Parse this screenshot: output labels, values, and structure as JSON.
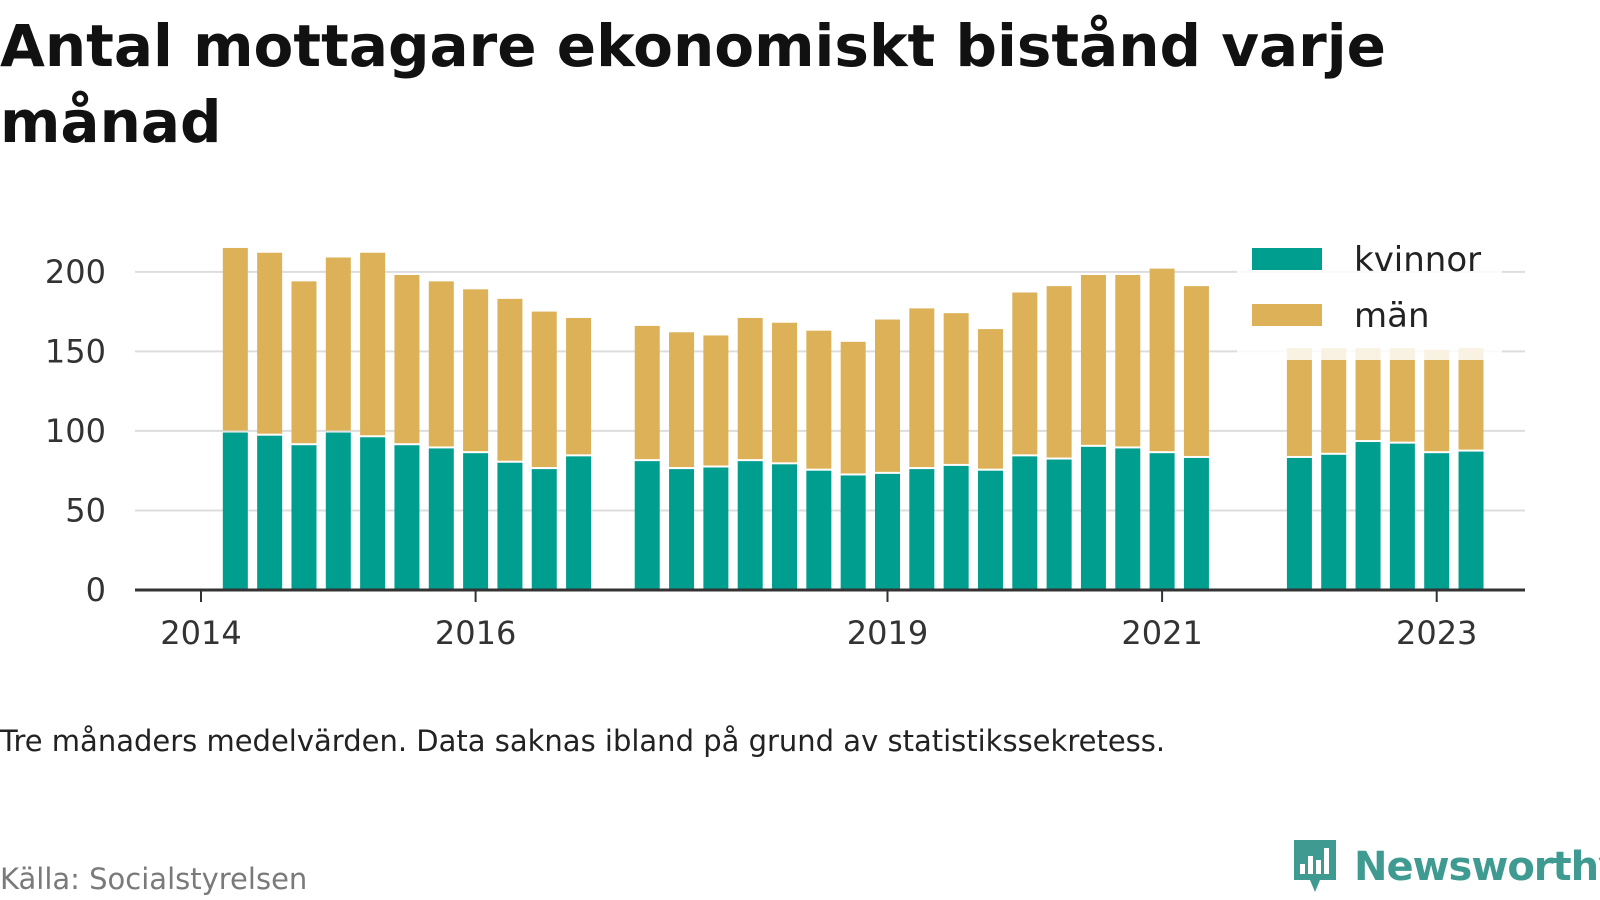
{
  "title": "Antal mottagare ekonomiskt bistånd varje månad",
  "note": "Tre månaders medelvärden. Data saknas ibland på grund av statistikssekretess.",
  "source": "Källa: Socialstyrelsen",
  "brand": "Newsworthy",
  "colors": {
    "kvinnor": "#009e8f",
    "man": "#dcb158",
    "brand": "#3f9b91",
    "grid": "#dddddd",
    "axis": "#333333"
  },
  "chart_data": {
    "type": "bar",
    "stacked": true,
    "x_axis": {
      "min": 2014,
      "max": 2023.33,
      "ticks": [
        "2014",
        "2016",
        "2019",
        "2021",
        "2023"
      ]
    },
    "y_axis": {
      "min": 0,
      "max": 220,
      "ticks": [
        "0",
        "50",
        "100",
        "150",
        "200"
      ]
    },
    "grid": true,
    "legend": "top-right",
    "x": [
      2014.25,
      2014.5,
      2014.75,
      2015.0,
      2015.25,
      2015.5,
      2015.75,
      2016.0,
      2016.25,
      2016.5,
      2016.75,
      2017.25,
      2017.5,
      2017.75,
      2018.0,
      2018.25,
      2018.5,
      2018.75,
      2019.0,
      2019.25,
      2019.5,
      2019.75,
      2020.0,
      2020.25,
      2020.5,
      2020.75,
      2021.0,
      2021.25,
      2022.0,
      2022.25,
      2022.5,
      2022.75,
      2023.0,
      2023.25
    ],
    "series": [
      {
        "name": "kvinnor",
        "values": [
          99,
          97,
          91,
          99,
          96,
          91,
          89,
          86,
          80,
          76,
          84,
          81,
          76,
          77,
          81,
          79,
          75,
          72,
          73,
          76,
          78,
          75,
          84,
          82,
          90,
          89,
          86,
          83,
          83,
          85,
          93,
          92,
          86,
          87
        ]
      },
      {
        "name": "män",
        "values": [
          116,
          115,
          103,
          110,
          116,
          107,
          105,
          103,
          103,
          99,
          87,
          85,
          86,
          83,
          90,
          89,
          88,
          84,
          97,
          101,
          96,
          89,
          103,
          109,
          108,
          109,
          116,
          108,
          69,
          67,
          59,
          60,
          65,
          65
        ]
      }
    ]
  }
}
